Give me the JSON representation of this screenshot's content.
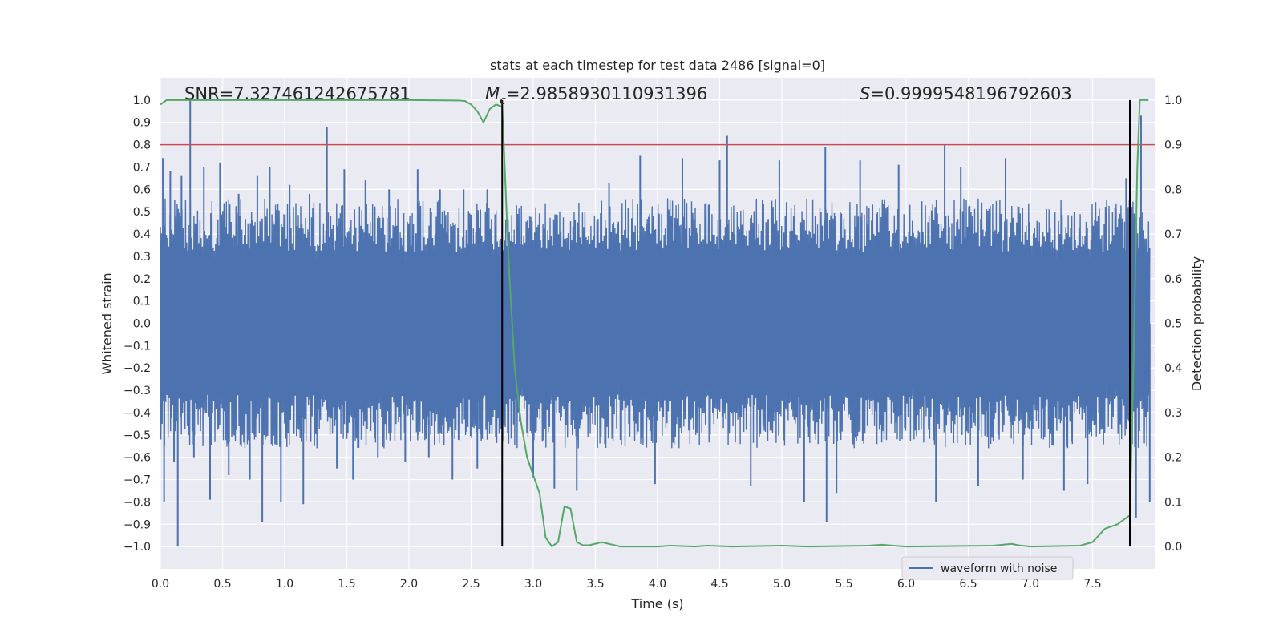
{
  "chart_data": {
    "type": "line",
    "title": "stats at each timestep for test data 2486 [signal=0]",
    "xlabel": "Time (s)",
    "ylabel": "Whitened strain",
    "y2label": "Detection probability",
    "xlim": [
      0.0,
      8.0
    ],
    "ylim": [
      -1.1,
      1.1
    ],
    "y2lim": [
      -0.05,
      1.05
    ],
    "xticks": [
      "0.0",
      "0.5",
      "1.0",
      "1.5",
      "2.0",
      "2.5",
      "3.0",
      "3.5",
      "4.0",
      "4.5",
      "5.0",
      "5.5",
      "6.0",
      "6.5",
      "7.0",
      "7.5"
    ],
    "yticks": [
      "1.0",
      "0.9",
      "0.8",
      "0.7",
      "0.6",
      "0.5",
      "0.4",
      "0.3",
      "0.2",
      "0.1",
      "0.0",
      "−0.1",
      "−0.2",
      "−0.3",
      "−0.4",
      "−0.5",
      "−0.6",
      "−0.7",
      "−0.8",
      "−0.9",
      "−1.0"
    ],
    "y2ticks": [
      "1.0",
      "0.9",
      "0.8",
      "0.7",
      "0.6",
      "0.5",
      "0.4",
      "0.3",
      "0.2",
      "0.1",
      "0.0"
    ],
    "annotations": {
      "snr": "SNR=7.327461242675781",
      "mc_symbol": "M",
      "mc_sub": "c",
      "mc_value": "=2.9858930110931396",
      "s_symbol": "S",
      "s_value": "=0.9999548196792603"
    },
    "threshold": {
      "y": 0.8,
      "color": "#c44e52"
    },
    "vlines": [
      2.75,
      7.8
    ],
    "legend": {
      "label": "waveform with noise",
      "position": "lower-right"
    },
    "colors": {
      "waveform": "#4c72b0",
      "probability": "#55a868",
      "plot_bg": "#eaeaf2",
      "grid": "#ffffff",
      "vline": "#000000"
    },
    "series": [
      {
        "name": "waveform with noise",
        "axis": "left",
        "description_values": "dense noise within approx ±0.55 with spikes",
        "spikes": [
          [
            0.02,
            0.74
          ],
          [
            0.03,
            -0.8
          ],
          [
            0.08,
            0.68
          ],
          [
            0.11,
            -0.62
          ],
          [
            0.14,
            -1.0
          ],
          [
            0.17,
            0.66
          ],
          [
            0.24,
            1.0
          ],
          [
            0.27,
            -0.6
          ],
          [
            0.35,
            0.7
          ],
          [
            0.4,
            -0.79
          ],
          [
            0.48,
            0.72
          ],
          [
            0.55,
            -0.68
          ],
          [
            0.63,
            0.58
          ],
          [
            0.72,
            -0.7
          ],
          [
            0.78,
            0.66
          ],
          [
            0.82,
            -0.89
          ],
          [
            0.88,
            0.7
          ],
          [
            0.97,
            -0.8
          ],
          [
            1.04,
            0.62
          ],
          [
            1.15,
            -0.81
          ],
          [
            1.2,
            0.58
          ],
          [
            1.34,
            0.88
          ],
          [
            1.42,
            -0.65
          ],
          [
            1.48,
            0.69
          ],
          [
            1.55,
            -0.7
          ],
          [
            1.65,
            0.64
          ],
          [
            1.75,
            -0.6
          ],
          [
            1.84,
            0.6
          ],
          [
            1.97,
            -0.62
          ],
          [
            2.07,
            0.69
          ],
          [
            2.16,
            -0.6
          ],
          [
            2.25,
            0.6
          ],
          [
            2.35,
            -0.7
          ],
          [
            2.44,
            0.6
          ],
          [
            2.55,
            -0.65
          ],
          [
            2.63,
            0.6
          ],
          [
            3.0,
            -0.69
          ],
          [
            3.17,
            -0.74
          ],
          [
            3.35,
            -0.75
          ],
          [
            3.61,
            0.63
          ],
          [
            3.86,
            0.75
          ],
          [
            3.98,
            -0.72
          ],
          [
            4.2,
            0.74
          ],
          [
            4.5,
            0.73
          ],
          [
            4.56,
            0.84
          ],
          [
            4.75,
            -0.73
          ],
          [
            4.98,
            0.73
          ],
          [
            5.18,
            -0.8
          ],
          [
            5.35,
            0.79
          ],
          [
            5.36,
            -0.89
          ],
          [
            5.44,
            -0.76
          ],
          [
            5.63,
            0.73
          ],
          [
            5.94,
            0.71
          ],
          [
            6.24,
            -0.8
          ],
          [
            6.31,
            0.8
          ],
          [
            6.44,
            0.7
          ],
          [
            6.58,
            -0.73
          ],
          [
            6.8,
            0.74
          ],
          [
            6.94,
            -0.7
          ],
          [
            7.27,
            -0.75
          ],
          [
            7.46,
            -0.72
          ],
          [
            7.77,
            0.65
          ],
          [
            7.85,
            -0.87
          ],
          [
            7.89,
            0.93
          ],
          [
            7.96,
            -0.8
          ]
        ]
      },
      {
        "name": "detection probability",
        "axis": "right",
        "x": [
          0.0,
          0.05,
          0.1,
          0.2,
          0.5,
          1.0,
          1.5,
          2.0,
          2.4,
          2.45,
          2.5,
          2.55,
          2.6,
          2.65,
          2.7,
          2.75,
          2.8,
          2.85,
          2.9,
          2.95,
          3.0,
          3.05,
          3.1,
          3.15,
          3.2,
          3.25,
          3.3,
          3.35,
          3.4,
          3.45,
          3.55,
          3.7,
          4.0,
          4.1,
          4.3,
          4.4,
          4.6,
          5.0,
          5.2,
          5.7,
          5.8,
          6.0,
          6.7,
          6.85,
          6.9,
          7.0,
          7.4,
          7.5,
          7.55,
          7.6,
          7.7,
          7.8,
          7.83,
          7.86,
          7.88,
          7.92,
          7.95
        ],
        "values": [
          0.99,
          1.0,
          1.0,
          1.0,
          1.0,
          1.0,
          1.0,
          1.0,
          0.999,
          0.998,
          0.99,
          0.975,
          0.95,
          0.98,
          0.99,
          0.985,
          0.65,
          0.4,
          0.28,
          0.2,
          0.16,
          0.12,
          0.02,
          0.0,
          0.01,
          0.09,
          0.085,
          0.01,
          0.003,
          0.003,
          0.01,
          0.0,
          0.0,
          0.002,
          0.0,
          0.002,
          0.0,
          0.002,
          0.0,
          0.002,
          0.004,
          0.0,
          0.002,
          0.006,
          0.003,
          0.0,
          0.002,
          0.01,
          0.025,
          0.04,
          0.05,
          0.07,
          0.42,
          0.85,
          1.0,
          1.0,
          1.0
        ]
      }
    ]
  }
}
